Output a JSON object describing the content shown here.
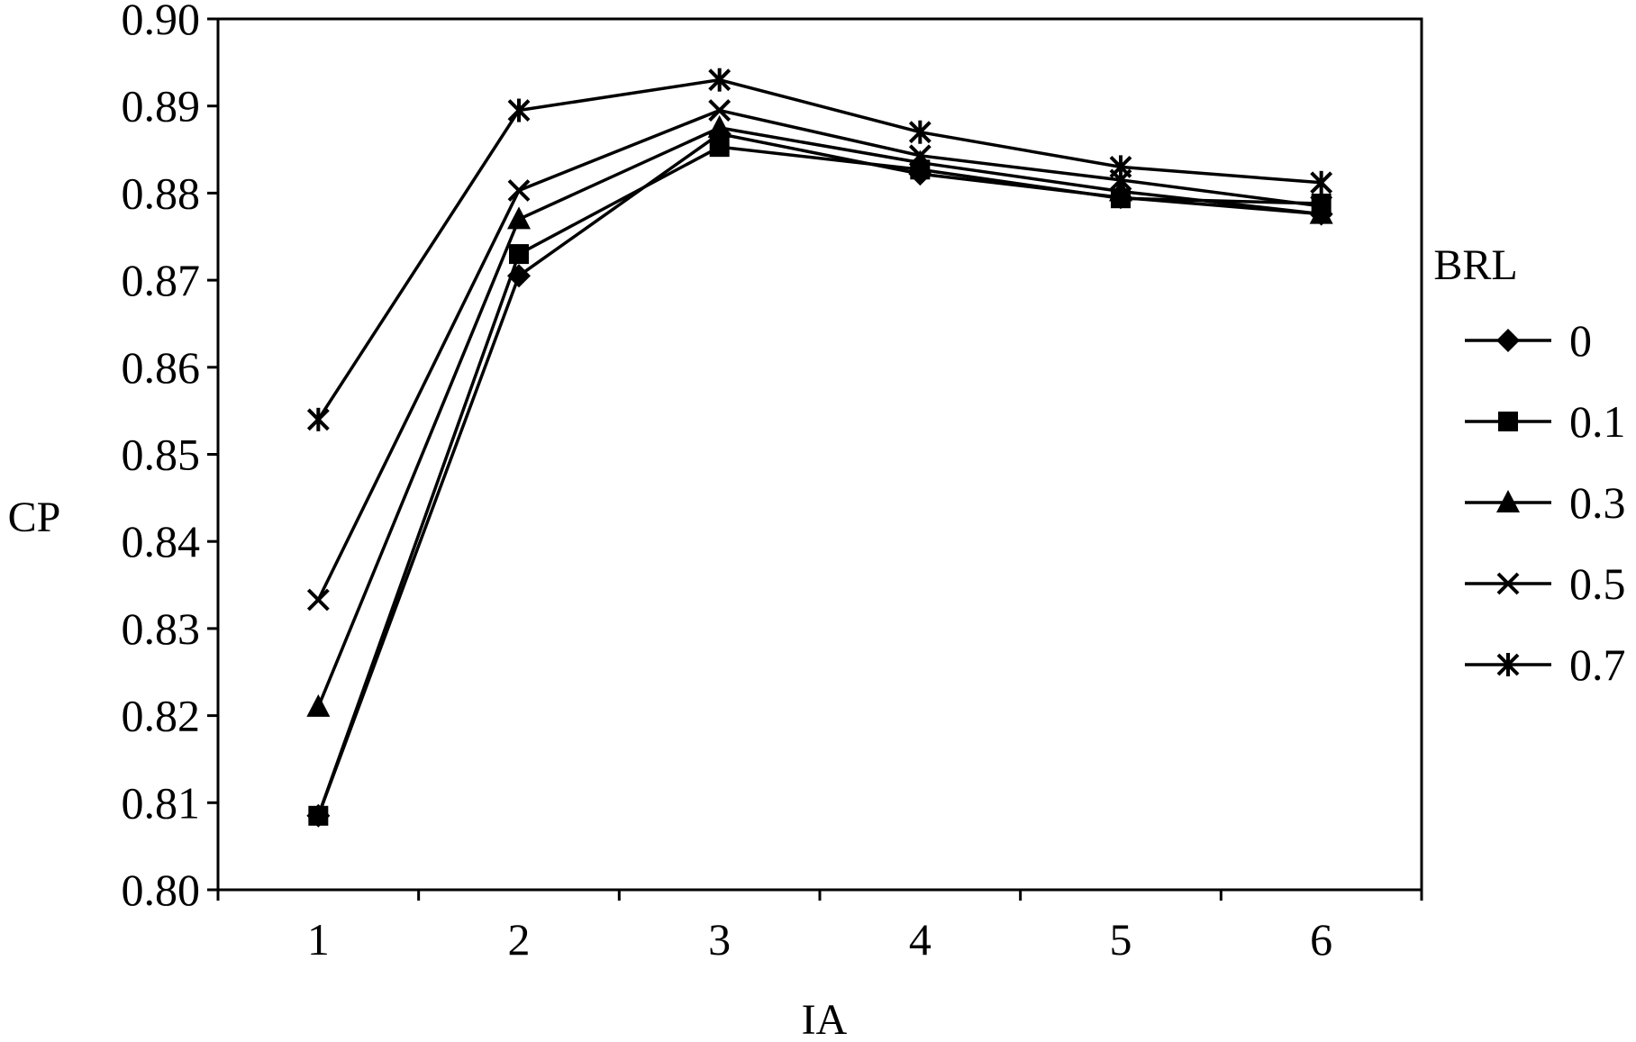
{
  "chart_data": {
    "type": "line",
    "title": "",
    "xlabel": "IA",
    "ylabel": "CP",
    "x": [
      1,
      2,
      3,
      4,
      5,
      6
    ],
    "x_tick_labels": [
      "1",
      "2",
      "3",
      "4",
      "5",
      "6"
    ],
    "ylim": [
      0.8,
      0.9
    ],
    "y_ticks": [
      "0.80",
      "0.81",
      "0.82",
      "0.83",
      "0.84",
      "0.85",
      "0.86",
      "0.87",
      "0.88",
      "0.89",
      "0.90"
    ],
    "grid": false,
    "legend": {
      "title": "BRL",
      "placement": "right",
      "entries": [
        "0",
        "0.1",
        "0.3",
        "0.5",
        "0.7"
      ]
    },
    "series": [
      {
        "name": "0",
        "marker": "diamond",
        "values": [
          0.8085,
          0.8705,
          0.8868,
          0.8822,
          0.8795,
          0.8776
        ]
      },
      {
        "name": "0.1",
        "marker": "square",
        "values": [
          0.8085,
          0.873,
          0.8853,
          0.8827,
          0.8794,
          0.8788
        ]
      },
      {
        "name": "0.3",
        "marker": "triangle",
        "values": [
          0.821,
          0.877,
          0.8875,
          0.8835,
          0.8802,
          0.8776
        ]
      },
      {
        "name": "0.5",
        "marker": "x",
        "values": [
          0.8333,
          0.8803,
          0.8895,
          0.8843,
          0.8815,
          0.8785
        ]
      },
      {
        "name": "0.7",
        "marker": "star",
        "values": [
          0.854,
          0.8895,
          0.893,
          0.887,
          0.883,
          0.8812
        ]
      }
    ],
    "colors": {
      "line": "#000000",
      "background": "#ffffff"
    }
  }
}
